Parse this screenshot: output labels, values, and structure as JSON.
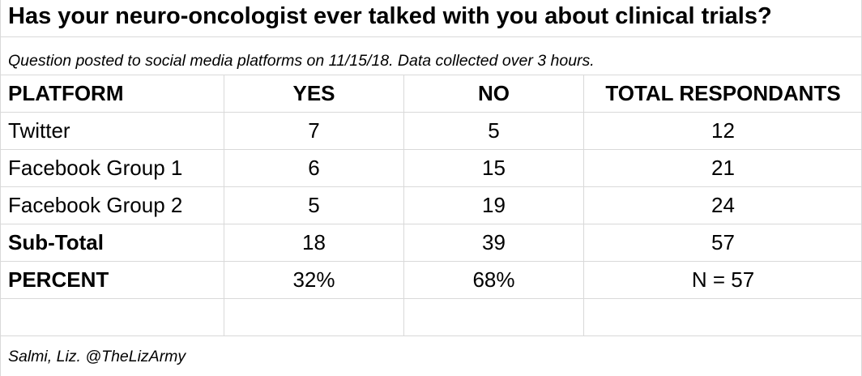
{
  "title": "Has your neuro-oncologist ever talked with you about clinical trials?",
  "subtitle": "Question posted to social media platforms on 11/15/18. Data collected over 3 hours.",
  "credit": "Salmi, Liz. @TheLizArmy",
  "chart_data": {
    "type": "table",
    "title": "Has your neuro-oncologist ever talked with you about clinical trials?",
    "columns": [
      "PLATFORM",
      "YES",
      "NO",
      "TOTAL RESPONDANTS"
    ],
    "rows": [
      {
        "label": "Twitter",
        "yes": "7",
        "no": "5",
        "total": "12"
      },
      {
        "label": "Facebook Group 1",
        "yes": "6",
        "no": "15",
        "total": "21"
      },
      {
        "label": "Facebook Group 2",
        "yes": "5",
        "no": "19",
        "total": "24"
      },
      {
        "label": "Sub-Total",
        "yes": "18",
        "no": "39",
        "total": "57"
      },
      {
        "label": "PERCENT",
        "yes": "32%",
        "no": "68%",
        "total": "N = 57"
      }
    ]
  }
}
